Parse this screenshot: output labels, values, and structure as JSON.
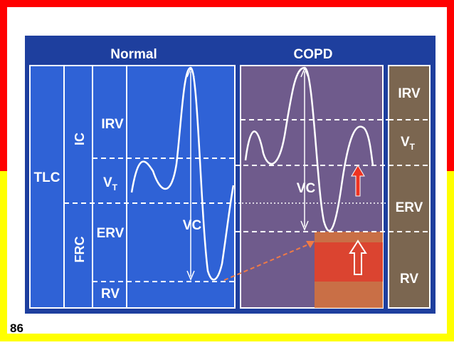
{
  "slide_number": "86",
  "normal": {
    "title": "Normal",
    "tlc": "TLC",
    "ic": "IC",
    "frc": "FRC",
    "irv": "IRV",
    "vt": {
      "base": "V",
      "sub": "T"
    },
    "erv": "ERV",
    "rv": "RV",
    "vc": "VC"
  },
  "copd": {
    "title": "COPD",
    "vc": "VC"
  },
  "copd_column": {
    "irv": "IRV",
    "vt": {
      "base": "V",
      "sub": "T"
    },
    "erv": "ERV",
    "rv": "RV"
  }
}
